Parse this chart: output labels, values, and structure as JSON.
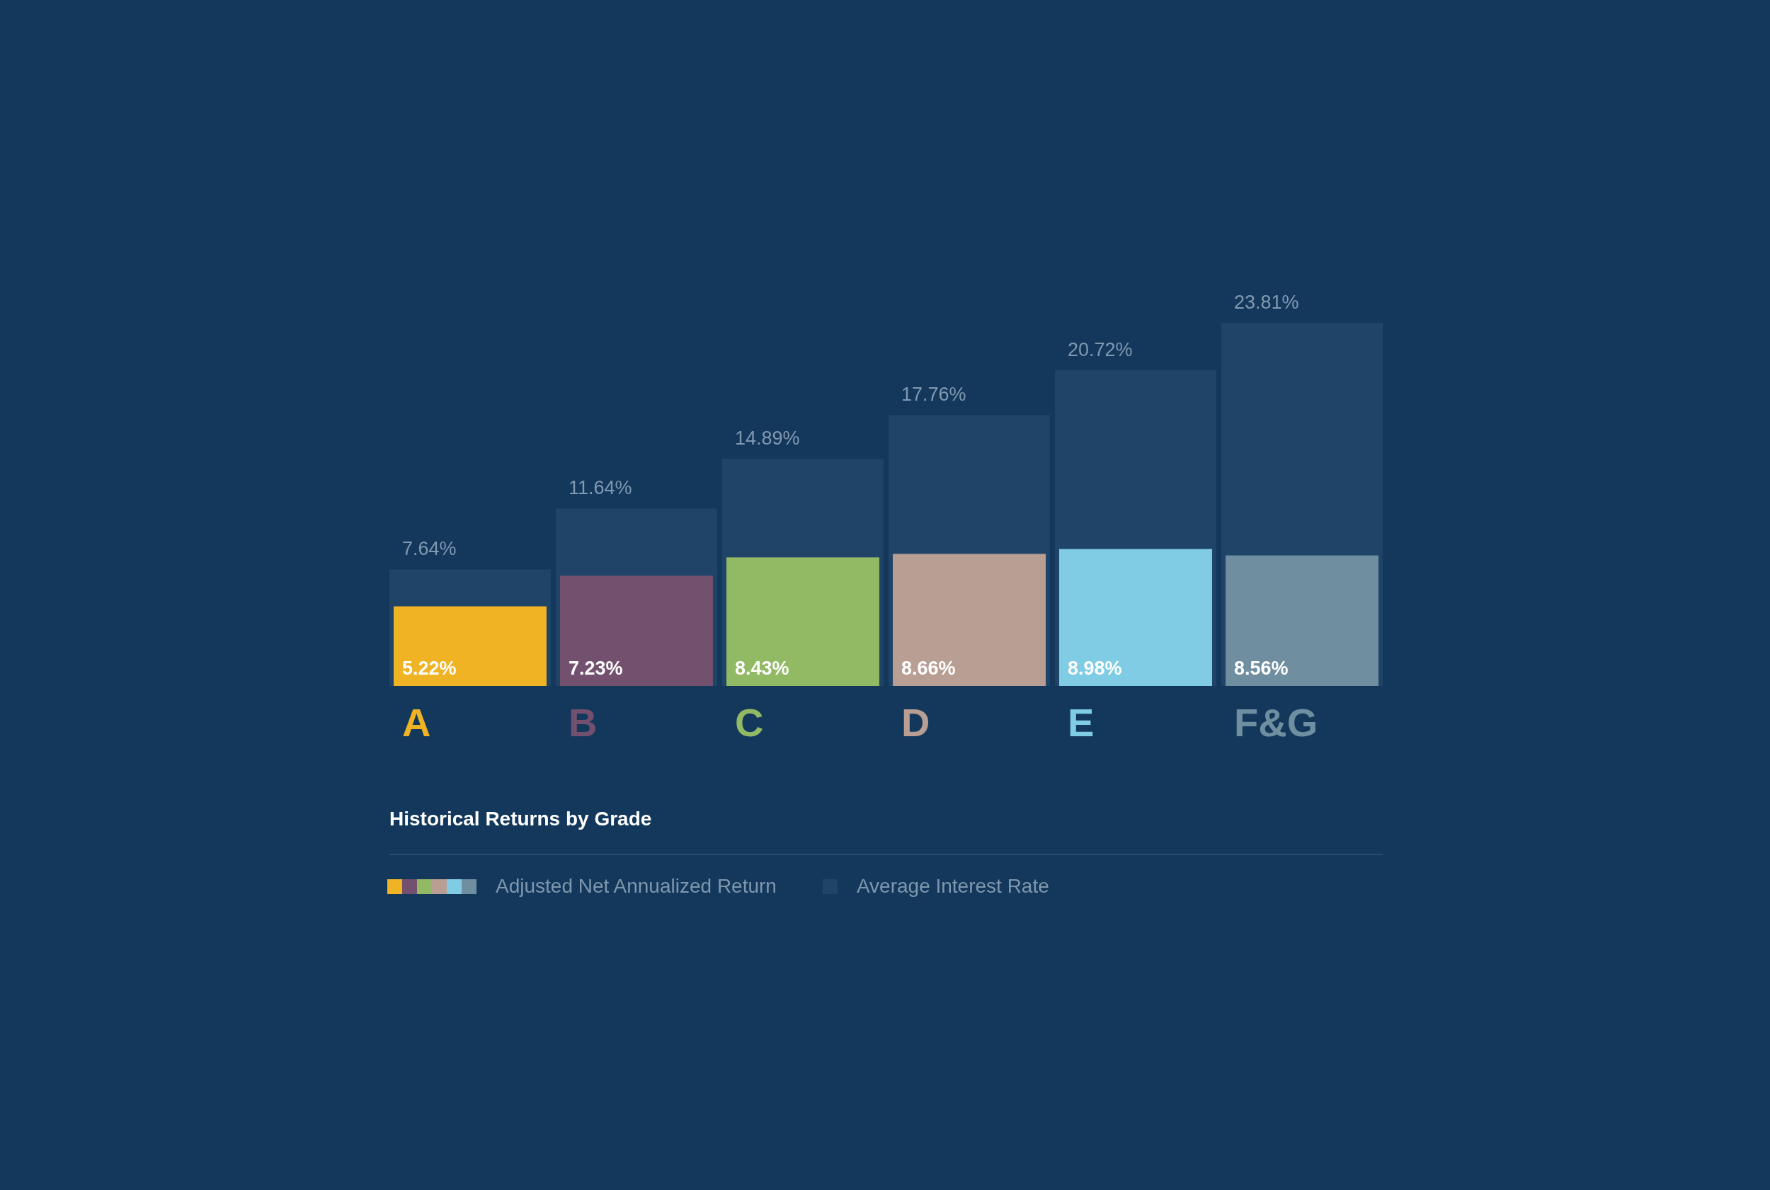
{
  "chart_data": {
    "type": "bar",
    "title": "Historical Returns by Grade",
    "categories": [
      "A",
      "B",
      "C",
      "D",
      "E",
      "F&G"
    ],
    "series": [
      {
        "name": "Average Interest Rate",
        "color": "#1f4468",
        "values": [
          7.64,
          11.64,
          14.89,
          17.76,
          20.72,
          23.81
        ],
        "value_labels": [
          "7.64%",
          "11.64%",
          "14.89%",
          "17.76%",
          "20.72%",
          "23.81%"
        ]
      },
      {
        "name": "Adjusted Net Annualized Return",
        "colors": [
          "#f0b323",
          "#73506e",
          "#92b964",
          "#b89e93",
          "#80cce4",
          "#6f8ea0"
        ],
        "values": [
          5.22,
          7.23,
          8.43,
          8.66,
          8.98,
          8.56
        ],
        "value_labels": [
          "5.22%",
          "7.23%",
          "8.43%",
          "8.66%",
          "8.98%",
          "8.56%"
        ]
      }
    ],
    "legend": "bottom"
  }
}
